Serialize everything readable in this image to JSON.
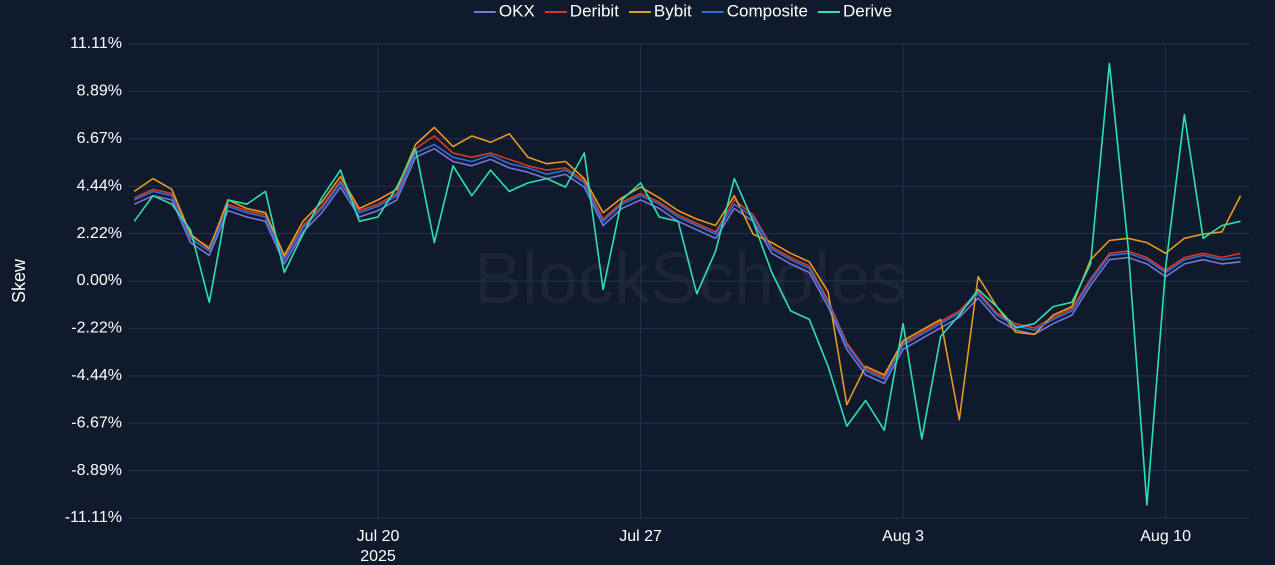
{
  "chart_data": {
    "type": "line",
    "y_label": "Skew",
    "watermark": "BlockScholes",
    "x": [
      "2025-07-13T12:00",
      "2025-07-14T00:00",
      "2025-07-14T12:00",
      "2025-07-15T00:00",
      "2025-07-15T12:00",
      "2025-07-16T00:00",
      "2025-07-16T12:00",
      "2025-07-17T00:00",
      "2025-07-17T12:00",
      "2025-07-18T00:00",
      "2025-07-18T12:00",
      "2025-07-19T00:00",
      "2025-07-19T12:00",
      "2025-07-20T00:00",
      "2025-07-20T12:00",
      "2025-07-21T00:00",
      "2025-07-21T12:00",
      "2025-07-22T00:00",
      "2025-07-22T12:00",
      "2025-07-23T00:00",
      "2025-07-23T12:00",
      "2025-07-24T00:00",
      "2025-07-24T12:00",
      "2025-07-25T00:00",
      "2025-07-25T12:00",
      "2025-07-26T00:00",
      "2025-07-26T12:00",
      "2025-07-27T00:00",
      "2025-07-27T12:00",
      "2025-07-28T00:00",
      "2025-07-28T12:00",
      "2025-07-29T00:00",
      "2025-07-29T12:00",
      "2025-07-30T00:00",
      "2025-07-30T12:00",
      "2025-07-31T00:00",
      "2025-07-31T12:00",
      "2025-08-01T00:00",
      "2025-08-01T12:00",
      "2025-08-02T00:00",
      "2025-08-02T12:00",
      "2025-08-03T00:00",
      "2025-08-03T12:00",
      "2025-08-04T00:00",
      "2025-08-04T12:00",
      "2025-08-05T00:00",
      "2025-08-05T12:00",
      "2025-08-06T00:00",
      "2025-08-06T12:00",
      "2025-08-07T00:00",
      "2025-08-07T12:00",
      "2025-08-08T00:00",
      "2025-08-08T12:00",
      "2025-08-09T00:00",
      "2025-08-09T12:00",
      "2025-08-10T00:00",
      "2025-08-10T12:00",
      "2025-08-11T00:00",
      "2025-08-11T12:00",
      "2025-08-12T00:00"
    ],
    "xlim": [
      "2025-07-13T08:00",
      "2025-08-12T06:00"
    ],
    "xticks": [
      {
        "value": "2025-07-20T00:00",
        "label": "Jul 20"
      },
      {
        "value": "2025-07-27T00:00",
        "label": "Jul 27"
      },
      {
        "value": "2025-08-03T00:00",
        "label": "Aug 3"
      },
      {
        "value": "2025-08-10T00:00",
        "label": "Aug 10"
      }
    ],
    "x_year_label": "2025",
    "ylim": [
      -11.11,
      11.11
    ],
    "yticks": [
      {
        "value": 11.11,
        "label": "11.11%"
      },
      {
        "value": 8.89,
        "label": "8.89%"
      },
      {
        "value": 6.67,
        "label": "6.67%"
      },
      {
        "value": 4.44,
        "label": "4.44%"
      },
      {
        "value": 2.22,
        "label": "2.22%"
      },
      {
        "value": 0,
        "label": "0.00%"
      },
      {
        "value": -2.22,
        "label": "-2.22%"
      },
      {
        "value": -4.44,
        "label": "-4.44%"
      },
      {
        "value": -6.67,
        "label": "-6.67%"
      },
      {
        "value": -8.89,
        "label": "-8.89%"
      },
      {
        "value": -11.11,
        "label": "-11.11%"
      }
    ],
    "grid": true,
    "legend": "top",
    "series": [
      {
        "name": "OKX",
        "color": "#7f72d6",
        "values": [
          3.6,
          4.0,
          3.8,
          1.8,
          1.2,
          3.3,
          3.0,
          2.8,
          0.8,
          2.3,
          3.2,
          4.4,
          3.0,
          3.3,
          3.8,
          5.8,
          6.2,
          5.6,
          5.4,
          5.7,
          5.3,
          5.1,
          4.8,
          5.0,
          4.4,
          2.6,
          3.4,
          3.8,
          3.4,
          2.8,
          2.4,
          2.0,
          3.4,
          2.8,
          1.3,
          0.8,
          0.4,
          -1.2,
          -3.2,
          -4.4,
          -4.8,
          -3.2,
          -2.7,
          -2.2,
          -1.7,
          -0.8,
          -1.8,
          -2.3,
          -2.5,
          -2.0,
          -1.6,
          -0.2,
          1.0,
          1.1,
          0.8,
          0.2,
          0.8,
          1.0,
          0.8,
          0.9
        ]
      },
      {
        "name": "Deribit",
        "color": "#d8391e",
        "values": [
          3.9,
          4.3,
          4.1,
          2.1,
          1.6,
          3.6,
          3.3,
          3.1,
          1.1,
          2.6,
          3.5,
          4.7,
          3.3,
          3.6,
          4.1,
          6.2,
          6.8,
          6.0,
          5.8,
          6.0,
          5.7,
          5.4,
          5.2,
          5.3,
          4.7,
          2.9,
          3.7,
          4.1,
          3.7,
          3.1,
          2.7,
          2.3,
          3.8,
          3.1,
          1.6,
          1.1,
          0.7,
          -0.9,
          -2.9,
          -4.1,
          -4.5,
          -2.9,
          -2.4,
          -1.9,
          -1.4,
          -0.5,
          -1.5,
          -2.0,
          -2.2,
          -1.7,
          -1.3,
          0.1,
          1.3,
          1.4,
          1.1,
          0.5,
          1.1,
          1.3,
          1.1,
          1.3
        ]
      },
      {
        "name": "Bybit",
        "color": "#e89a1c",
        "values": [
          4.2,
          4.8,
          4.3,
          2.2,
          1.5,
          3.8,
          3.4,
          3.2,
          1.2,
          2.8,
          3.7,
          4.9,
          3.4,
          3.8,
          4.3,
          6.4,
          7.2,
          6.3,
          6.8,
          6.5,
          6.9,
          5.8,
          5.5,
          5.6,
          4.8,
          3.2,
          3.9,
          4.4,
          3.9,
          3.3,
          2.9,
          2.6,
          4.0,
          2.2,
          1.8,
          1.3,
          0.9,
          -0.5,
          -5.8,
          -4.0,
          -4.4,
          -2.8,
          -2.3,
          -1.8,
          -6.5,
          0.2,
          -1.2,
          -2.4,
          -2.5,
          -1.6,
          -1.2,
          1.0,
          1.9,
          2.0,
          1.8,
          1.3,
          2.0,
          2.2,
          2.3,
          4.0
        ]
      },
      {
        "name": "Composite",
        "color": "#2f6fd8",
        "values": [
          3.8,
          4.2,
          4.0,
          2.0,
          1.4,
          3.5,
          3.2,
          3.0,
          1.0,
          2.5,
          3.4,
          4.6,
          3.2,
          3.5,
          4.0,
          6.0,
          6.4,
          5.8,
          5.6,
          5.9,
          5.5,
          5.3,
          5.0,
          5.2,
          4.6,
          2.8,
          3.6,
          4.0,
          3.6,
          3.0,
          2.6,
          2.2,
          3.6,
          3.0,
          1.5,
          1.0,
          0.6,
          -1.0,
          -3.0,
          -4.2,
          -4.6,
          -3.0,
          -2.5,
          -2.0,
          -1.5,
          -0.6,
          -1.6,
          -2.1,
          -2.3,
          -1.8,
          -1.4,
          0.0,
          1.2,
          1.3,
          1.0,
          0.4,
          1.0,
          1.2,
          1.0,
          1.1
        ]
      },
      {
        "name": "Derive",
        "color": "#2fe0b2",
        "values": [
          2.8,
          4.0,
          3.6,
          2.4,
          -1.0,
          3.8,
          3.6,
          4.2,
          0.4,
          2.2,
          3.9,
          5.2,
          2.8,
          3.0,
          4.4,
          6.2,
          1.8,
          5.4,
          4.0,
          5.2,
          4.2,
          4.6,
          4.8,
          4.4,
          6.0,
          -0.4,
          3.8,
          4.6,
          3.0,
          2.8,
          -0.6,
          1.4,
          4.8,
          2.8,
          0.4,
          -1.4,
          -1.8,
          -4.0,
          -6.8,
          -5.6,
          -7.0,
          -2.0,
          -7.4,
          -2.6,
          -1.6,
          -0.4,
          -1.2,
          -2.2,
          -2.0,
          -1.2,
          -1.0,
          0.8,
          10.2,
          1.6,
          -10.5,
          0.6,
          7.8,
          2.0,
          2.6,
          2.8
        ]
      }
    ]
  }
}
